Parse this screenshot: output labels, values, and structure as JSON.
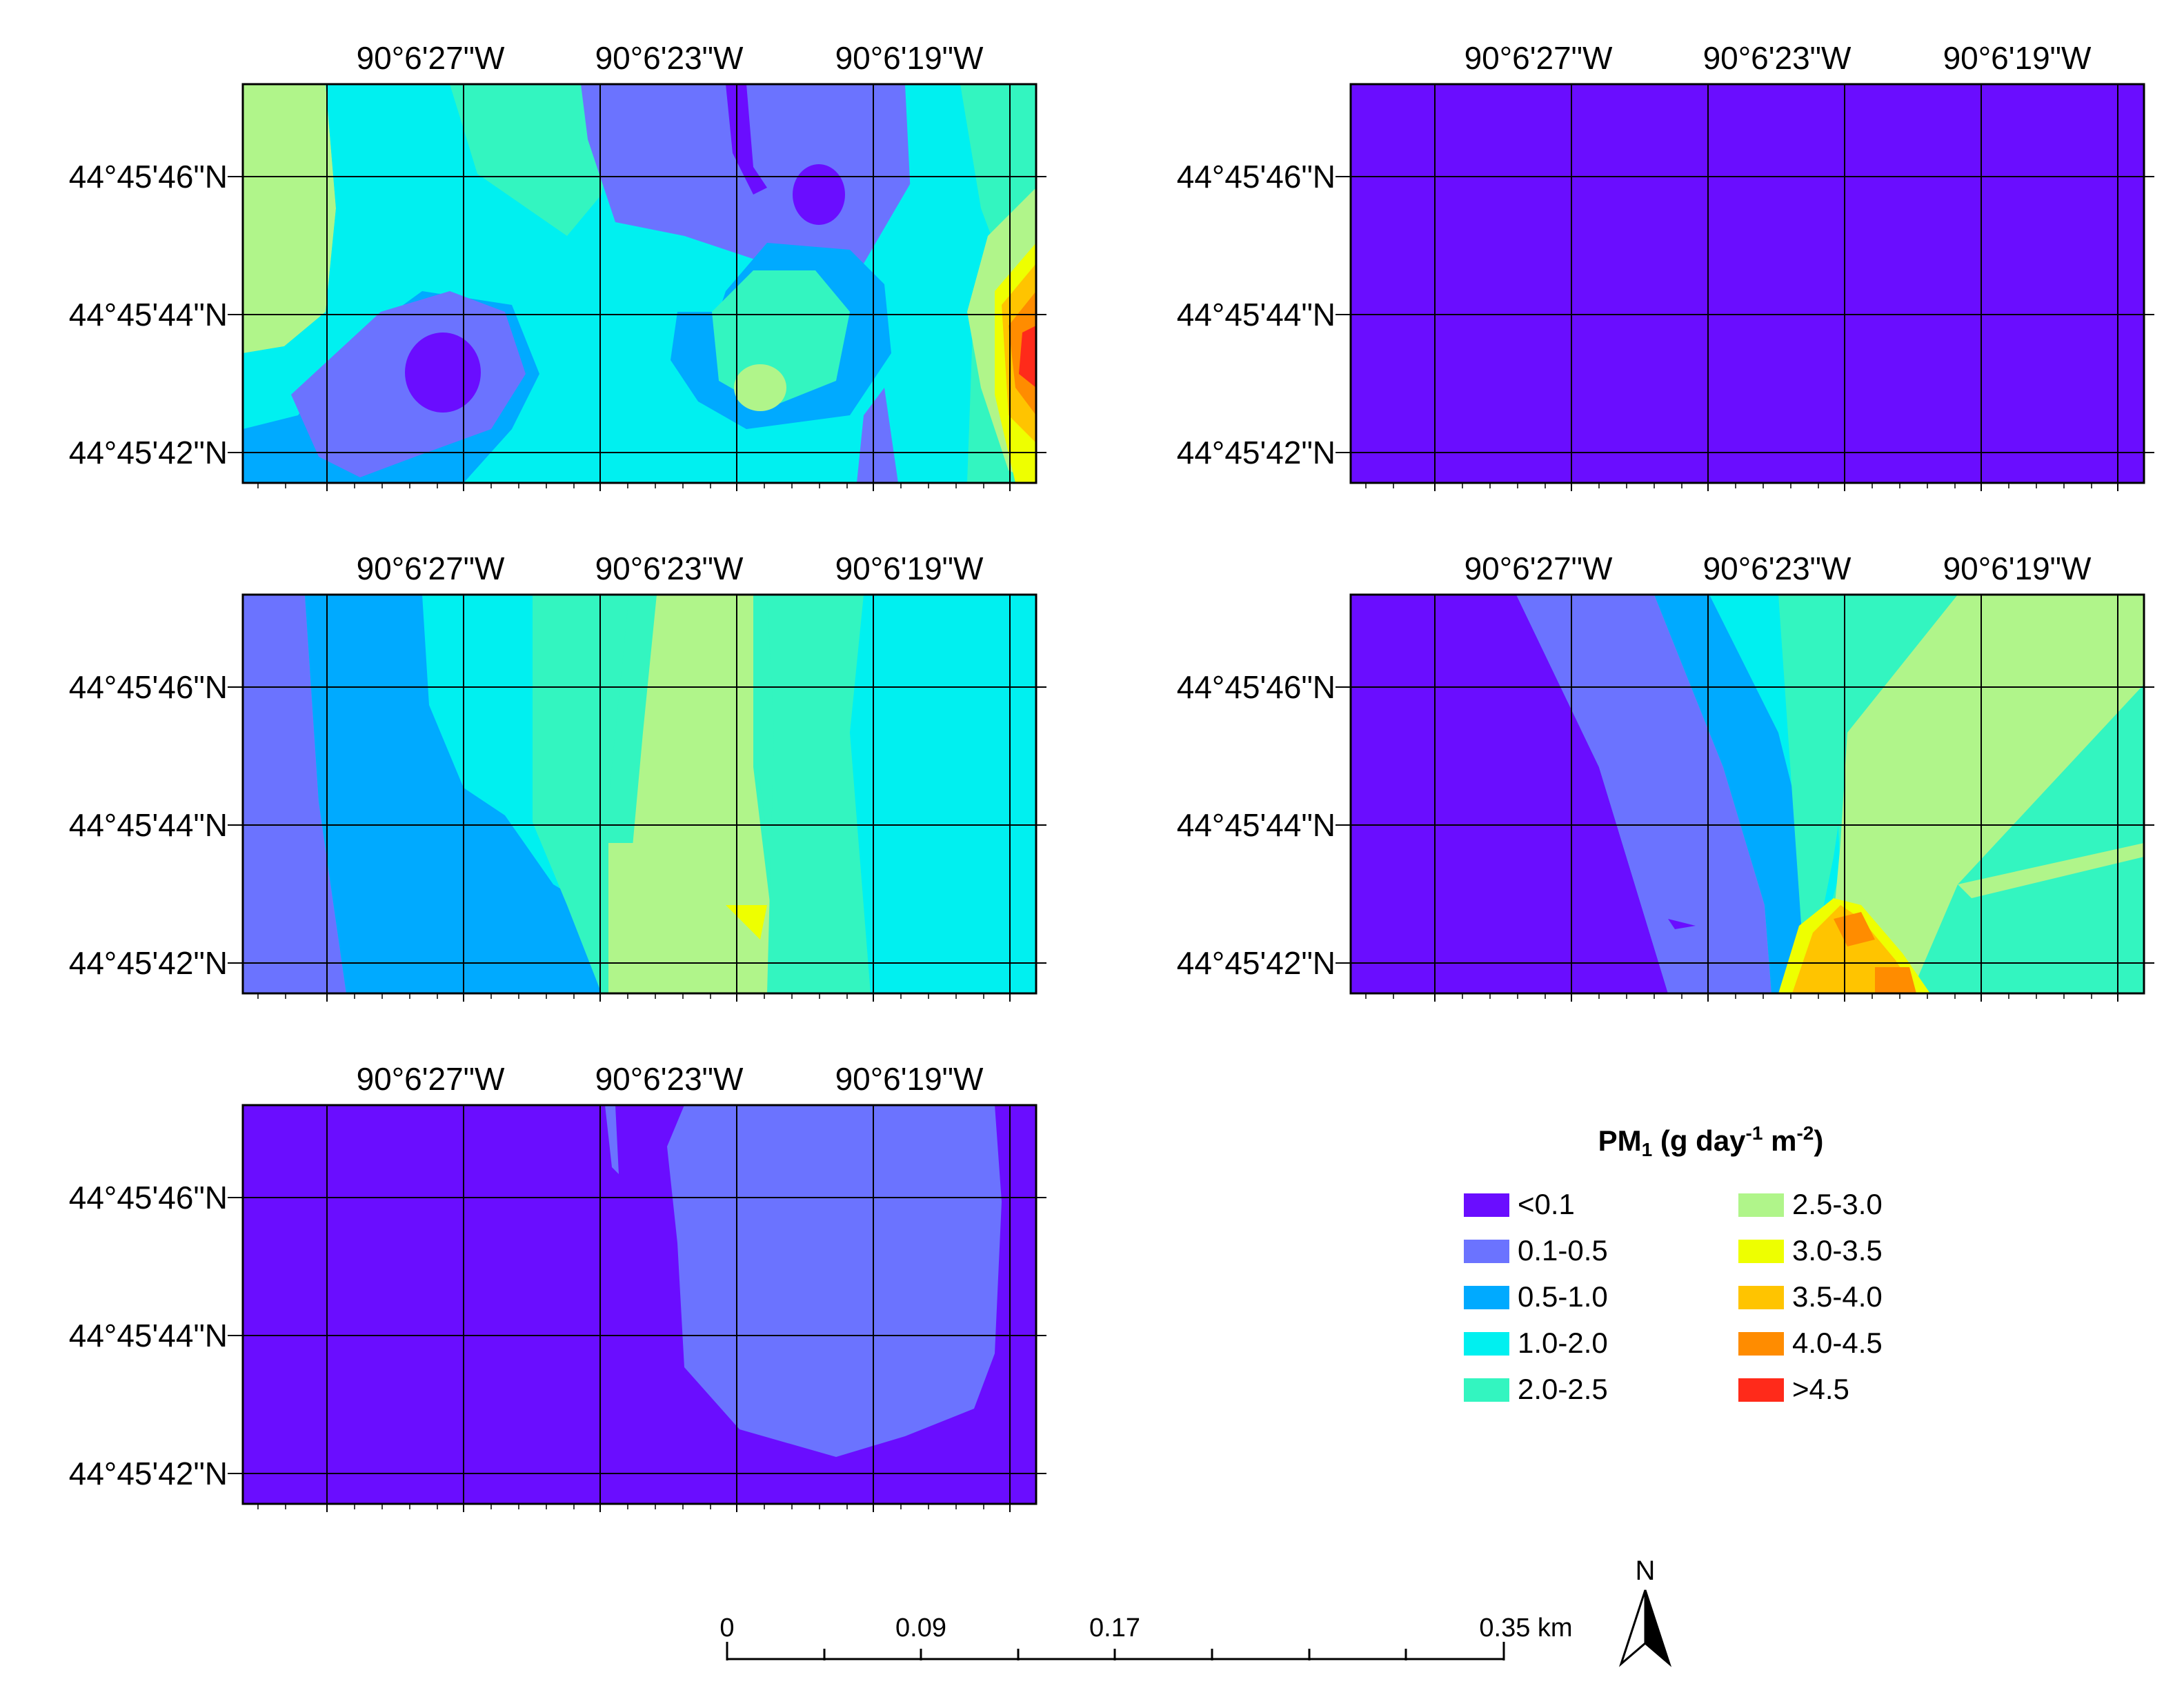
{
  "longitude_labels": [
    "90°6'27\"W",
    "90°6'23\"W",
    "90°6'19\"W"
  ],
  "latitude_labels": [
    "44°45'46\"N",
    "44°45'44\"N",
    "44°45'42\"N"
  ],
  "legend": {
    "title_main": "PM",
    "title_sub": "1",
    "title_rest_1": " (g day",
    "title_sup_1": "-1",
    "title_rest_2": " m",
    "title_sup_2": "-2",
    "title_rest_3": ")",
    "items": [
      {
        "label": "<0.1",
        "color": "#6a0dff"
      },
      {
        "label": "0.1-0.5",
        "color": "#6b73ff"
      },
      {
        "label": "0.5-1.0",
        "color": "#00aaff"
      },
      {
        "label": "1.0-2.0",
        "color": "#00f0f0"
      },
      {
        "label": "2.0-2.5",
        "color": "#33f5c0"
      },
      {
        "label": "2.5-3.0",
        "color": "#b0f58a"
      },
      {
        "label": "3.0-3.5",
        "color": "#eeff00"
      },
      {
        "label": "3.5-4.0",
        "color": "#ffc400"
      },
      {
        "label": "4.0-4.5",
        "color": "#ff8c00"
      },
      {
        "label": ">4.5",
        "color": "#ff2a1a"
      }
    ]
  },
  "scale_bar": {
    "ticks": [
      "0",
      "0.09",
      "0.17",
      "0.35 km"
    ]
  },
  "north_arrow": {
    "label": "N"
  },
  "colors": {
    "c0": "#6a0dff",
    "c1": "#6b73ff",
    "c2": "#00aaff",
    "c3": "#00f0f0",
    "c4": "#33f5c0",
    "c5": "#b0f58a",
    "c6": "#eeff00",
    "c7": "#ffc400",
    "c8": "#ff8c00",
    "c9": "#ff2a1a"
  }
}
